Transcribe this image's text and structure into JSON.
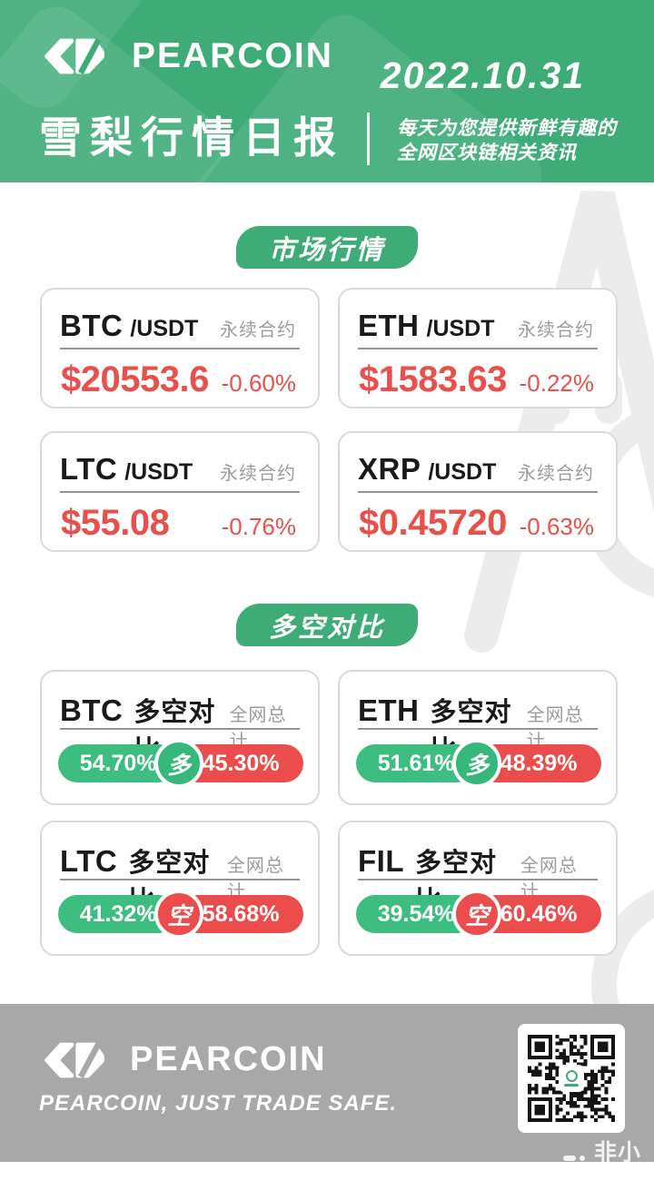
{
  "theme": {
    "green": "#3FAC78",
    "bar_green": "#3EBD80",
    "red": "#EA4D4B",
    "price_red": "#E8504C",
    "label_gray": "#9C9C9C",
    "footer_gray": "#A8A8A8"
  },
  "header": {
    "brand": "PEARCOIN",
    "date": "2022.10.31",
    "title": "雪梨行情日报",
    "tagline_line1": "每天为您提供新鲜有趣的",
    "tagline_line2": "全网区块链相关资讯"
  },
  "sections": {
    "market_badge": "市场行情",
    "longshort_badge": "多空对比"
  },
  "market_cards": [
    {
      "symbol": "BTC",
      "pair": "/USDT",
      "contract_label": "永续合约",
      "price": "$20553.6",
      "change": "-0.60%"
    },
    {
      "symbol": "ETH",
      "pair": "/USDT",
      "contract_label": "永续合约",
      "price": "$1583.63",
      "change": "-0.22%"
    },
    {
      "symbol": "LTC",
      "pair": "/USDT",
      "contract_label": "永续合约",
      "price": "$55.08",
      "change": "-0.76%"
    },
    {
      "symbol": "XRP",
      "pair": "/USDT",
      "contract_label": "永续合约",
      "price": "$0.45720",
      "change": "-0.63%"
    }
  ],
  "longshort_cards": [
    {
      "symbol": "BTC",
      "label": "多空对比",
      "scope_label": "全网总计",
      "long_label": "54.70%",
      "short_label": "45.30%",
      "badge_label": "多",
      "badge_type": "long"
    },
    {
      "symbol": "ETH",
      "label": "多空对比",
      "scope_label": "全网总计",
      "long_label": "51.61%",
      "short_label": "48.39%",
      "badge_label": "多",
      "badge_type": "long"
    },
    {
      "symbol": "LTC",
      "label": "多空对比",
      "scope_label": "全网总计",
      "long_label": "41.32%",
      "short_label": "58.68%",
      "badge_label": "空",
      "badge_type": "short"
    },
    {
      "symbol": "FIL",
      "label": "多空对比",
      "scope_label": "全网总计",
      "long_label": "39.54%",
      "short_label": "60.46%",
      "badge_label": "空",
      "badge_type": "short"
    }
  ],
  "footer": {
    "brand": "PEARCOIN",
    "tagline": "PEARCOIN, JUST TRADE SAFE.",
    "watermark": "非小号"
  }
}
